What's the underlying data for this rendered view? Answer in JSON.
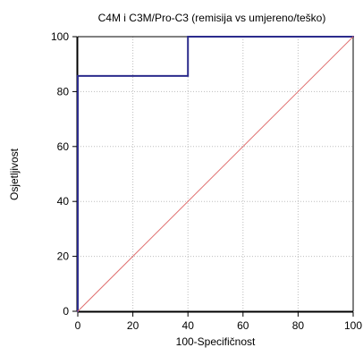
{
  "chart_data": {
    "type": "line",
    "title": "C4M i C3M/Pro-C3 (remisija vs umjereno/teško)",
    "xlabel": "100-Specifičnost",
    "ylabel": "Osjetljivost",
    "xlim": [
      0,
      100
    ],
    "ylim": [
      0,
      100
    ],
    "x_ticks": [
      0,
      20,
      40,
      60,
      80,
      100
    ],
    "y_ticks": [
      0,
      20,
      40,
      60,
      80,
      100
    ],
    "grid": true,
    "series": [
      {
        "x": [
          0,
          0,
          40,
          40,
          100
        ],
        "y": [
          0,
          85.7,
          85.7,
          100,
          100
        ],
        "color": "#2b2b8c"
      },
      {
        "x": [
          0,
          100
        ],
        "y": [
          0,
          100
        ],
        "color": "#e07070"
      }
    ]
  }
}
